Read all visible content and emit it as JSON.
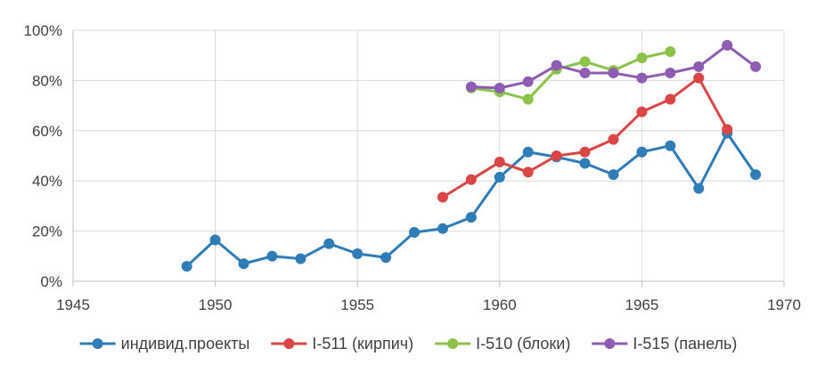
{
  "chart_data": {
    "type": "line",
    "title": "",
    "xlabel": "",
    "ylabel": "",
    "xlim": [
      1945,
      1970
    ],
    "ylim": [
      0,
      100
    ],
    "x_ticks": [
      1945,
      1950,
      1955,
      1960,
      1965,
      1970
    ],
    "y_ticks": [
      0,
      20,
      40,
      60,
      80,
      100
    ],
    "y_tick_labels": [
      "0%",
      "20%",
      "40%",
      "60%",
      "80%",
      "100%"
    ],
    "x_tick_labels": [
      "1945",
      "1950",
      "1955",
      "1960",
      "1965",
      "1970"
    ],
    "grid": "vertical and horizontal",
    "legend_position": "bottom",
    "series": [
      {
        "name": "индивид.проекты",
        "color": "#2E7DB7",
        "points": [
          [
            1949,
            6
          ],
          [
            1950,
            16.5
          ],
          [
            1951,
            7
          ],
          [
            1952,
            10
          ],
          [
            1953,
            9
          ],
          [
            1954,
            15
          ],
          [
            1955,
            11
          ],
          [
            1956,
            9.5
          ],
          [
            1957,
            19.5
          ],
          [
            1958,
            21
          ],
          [
            1959,
            25.5
          ],
          [
            1960,
            41.5
          ],
          [
            1961,
            51.5
          ],
          [
            1962,
            49.5
          ],
          [
            1963,
            47
          ],
          [
            1964,
            42.5
          ],
          [
            1965,
            51.5
          ],
          [
            1966,
            54
          ],
          [
            1967,
            37
          ],
          [
            1968,
            59
          ],
          [
            1969,
            42.5
          ]
        ]
      },
      {
        "name": "I-511 (кирпич)",
        "color": "#DA4646",
        "points": [
          [
            1958,
            33.5
          ],
          [
            1959,
            40.5
          ],
          [
            1960,
            47.5
          ],
          [
            1961,
            43.5
          ],
          [
            1962,
            50
          ],
          [
            1963,
            51.5
          ],
          [
            1964,
            56.5
          ],
          [
            1965,
            67.5
          ],
          [
            1966,
            72.5
          ],
          [
            1967,
            81
          ],
          [
            1968,
            60.5
          ]
        ]
      },
      {
        "name": "I-510 (блоки)",
        "color": "#8BC34A",
        "points": [
          [
            1959,
            77
          ],
          [
            1960,
            75.5
          ],
          [
            1961,
            72.5
          ],
          [
            1962,
            84.5
          ],
          [
            1963,
            87.5
          ],
          [
            1964,
            84
          ],
          [
            1965,
            89
          ],
          [
            1966,
            91.5
          ]
        ]
      },
      {
        "name": "I-515 (панель)",
        "color": "#8E5CB3",
        "points": [
          [
            1959,
            77.5
          ],
          [
            1960,
            77
          ],
          [
            1961,
            79.5
          ],
          [
            1962,
            86
          ],
          [
            1963,
            83
          ],
          [
            1964,
            83
          ],
          [
            1965,
            81
          ],
          [
            1966,
            83
          ],
          [
            1967,
            85.5
          ],
          [
            1968,
            94
          ],
          [
            1969,
            85.5
          ]
        ]
      }
    ]
  }
}
